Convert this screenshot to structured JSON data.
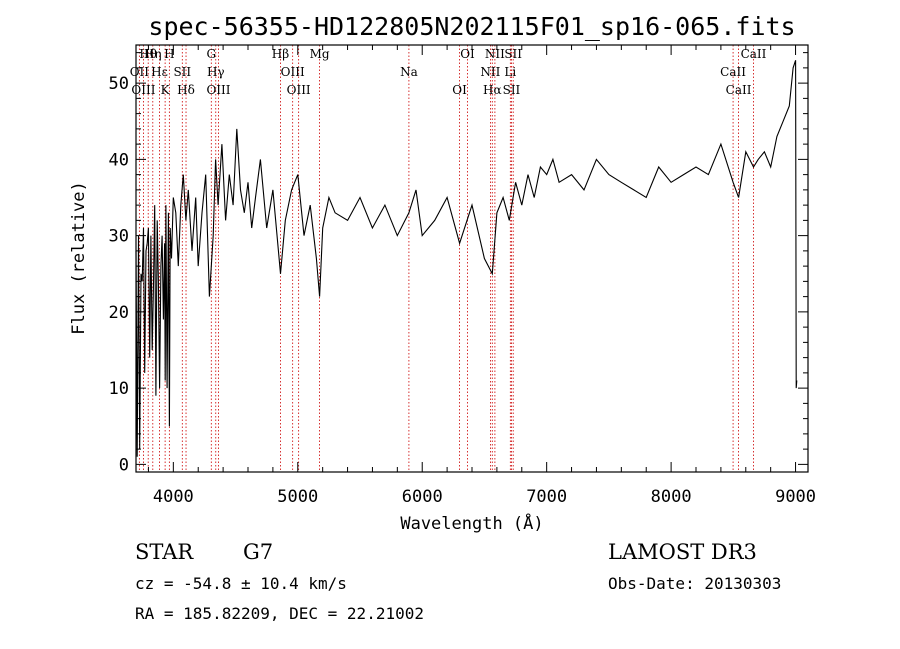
{
  "chart_data": {
    "type": "line",
    "title": "spec-56355-HD122805N202115F01_sp16-065.fits",
    "xlabel": "Wavelength (Å)",
    "ylabel": "Flux (relative)",
    "xlim": [
      3700,
      9100
    ],
    "ylim": [
      -1,
      55
    ],
    "xticks": [
      4000,
      5000,
      6000,
      7000,
      8000,
      9000
    ],
    "yticks": [
      0,
      10,
      20,
      30,
      40,
      50
    ],
    "series": [
      {
        "name": "flux",
        "x": [
          3700,
          3710,
          3720,
          3730,
          3740,
          3750,
          3760,
          3770,
          3780,
          3790,
          3800,
          3810,
          3820,
          3830,
          3840,
          3850,
          3860,
          3870,
          3880,
          3890,
          3900,
          3910,
          3920,
          3930,
          3935,
          3940,
          3950,
          3960,
          3968,
          3975,
          3985,
          4000,
          4020,
          4040,
          4060,
          4080,
          4101,
          4120,
          4150,
          4180,
          4200,
          4230,
          4260,
          4290,
          4320,
          4340,
          4360,
          4390,
          4420,
          4450,
          4480,
          4510,
          4540,
          4570,
          4600,
          4630,
          4660,
          4700,
          4750,
          4800,
          4861,
          4900,
          4950,
          5000,
          5050,
          5100,
          5150,
          5175,
          5200,
          5250,
          5300,
          5400,
          5500,
          5600,
          5700,
          5800,
          5893,
          5950,
          6000,
          6100,
          6200,
          6300,
          6400,
          6500,
          6563,
          6600,
          6650,
          6700,
          6750,
          6800,
          6850,
          6900,
          6950,
          7000,
          7050,
          7100,
          7200,
          7300,
          7400,
          7500,
          7600,
          7700,
          7800,
          7900,
          8000,
          8100,
          8200,
          8300,
          8400,
          8498,
          8542,
          8600,
          8662,
          8700,
          8750,
          8800,
          8850,
          8900,
          8950,
          8980,
          9000,
          9005,
          9010
        ],
        "values": [
          28,
          1,
          30,
          2,
          25,
          24,
          31,
          12,
          28,
          29,
          31,
          14,
          30,
          15,
          23,
          34,
          9,
          32,
          24,
          10,
          26,
          30,
          19,
          29,
          11,
          34,
          10,
          33,
          5,
          31,
          27,
          35,
          33,
          26,
          34,
          38,
          32,
          36,
          28,
          35,
          26,
          33,
          38,
          22,
          30,
          40,
          34,
          42,
          32,
          38,
          34,
          44,
          36,
          33,
          37,
          31,
          35,
          40,
          31,
          36,
          25,
          32,
          36,
          38,
          30,
          34,
          27,
          22,
          31,
          35,
          33,
          32,
          35,
          31,
          34,
          30,
          33,
          36,
          30,
          32,
          35,
          29,
          34,
          27,
          25,
          33,
          35,
          32,
          37,
          34,
          38,
          35,
          39,
          38,
          40,
          37,
          38,
          36,
          40,
          38,
          37,
          36,
          35,
          39,
          37,
          38,
          39,
          38,
          42,
          37,
          35,
          41,
          39,
          40,
          41,
          39,
          43,
          45,
          47,
          52,
          53,
          10,
          11
        ]
      }
    ],
    "lines": [
      {
        "name": "Hθ",
        "wavelength": 3798
      },
      {
        "name": "OII",
        "wavelength": 3727
      },
      {
        "name": "OIII",
        "wavelength": 3760
      },
      {
        "name": "Hη",
        "wavelength": 3835
      },
      {
        "name": "Hε",
        "wavelength": 3889
      },
      {
        "name": "K",
        "wavelength": 3934
      },
      {
        "name": "H",
        "wavelength": 3968
      },
      {
        "name": "SII",
        "wavelength": 4072
      },
      {
        "name": "Hδ",
        "wavelength": 4102
      },
      {
        "name": "G",
        "wavelength": 4305
      },
      {
        "name": "Hγ",
        "wavelength": 4341
      },
      {
        "name": "OIII",
        "wavelength": 4363
      },
      {
        "name": "Hβ",
        "wavelength": 4861
      },
      {
        "name": "OIII",
        "wavelength": 4959
      },
      {
        "name": "OIII",
        "wavelength": 5007
      },
      {
        "name": "Mg",
        "wavelength": 5175
      },
      {
        "name": "Na",
        "wavelength": 5893
      },
      {
        "name": "OI",
        "wavelength": 6300
      },
      {
        "name": "OI",
        "wavelength": 6364
      },
      {
        "name": "NII",
        "wavelength": 6548
      },
      {
        "name": "Hα",
        "wavelength": 6563
      },
      {
        "name": "NII",
        "wavelength": 6584
      },
      {
        "name": "Li",
        "wavelength": 6708
      },
      {
        "name": "SII",
        "wavelength": 6717
      },
      {
        "name": "SII",
        "wavelength": 6731
      },
      {
        "name": "CaII",
        "wavelength": 8498
      },
      {
        "name": "CaII",
        "wavelength": 8542
      },
      {
        "name": "CaII",
        "wavelength": 8662
      }
    ]
  },
  "info": {
    "object_type": "STAR",
    "subclass": "G7",
    "survey": "LAMOST DR3",
    "redshift": "cz = -54.8 ± 10.4 km/s",
    "obs_date": "Obs-Date: 20130303",
    "coords": "RA = 185.82209, DEC =  22.21002"
  },
  "colors": {
    "spectrum": "#000000",
    "line_marker": "#cc0000",
    "axes": "#000000"
  }
}
